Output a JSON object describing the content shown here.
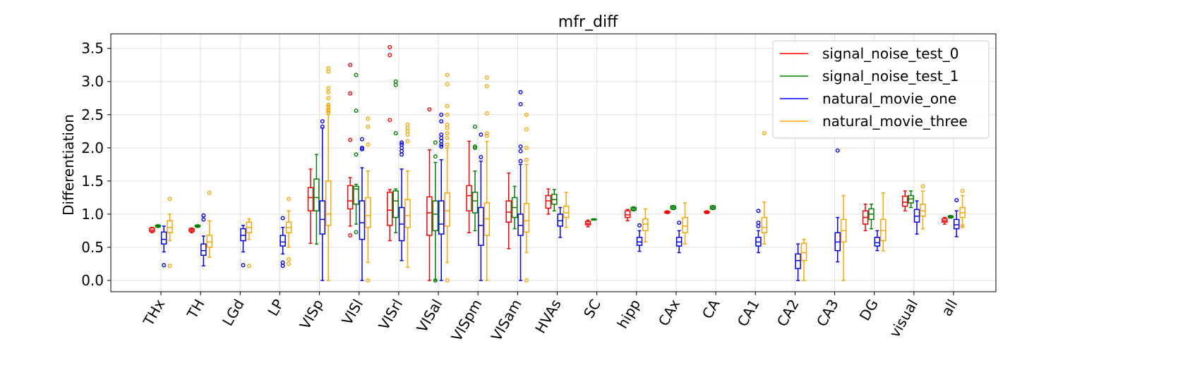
{
  "chart_data": {
    "type": "boxplot",
    "title": "mfr_diff",
    "xlabel": "",
    "ylabel": "Differentiation",
    "ylim": [
      -0.17,
      3.72
    ],
    "yticks": [
      0.0,
      0.5,
      1.0,
      1.5,
      2.0,
      2.5,
      3.0,
      3.5
    ],
    "ytick_labels": [
      "0.0",
      "0.5",
      "1.0",
      "1.5",
      "2.0",
      "2.5",
      "3.0",
      "3.5"
    ],
    "grid": true,
    "legend_position": "upper right",
    "categories": [
      "THx",
      "TH",
      "LGd",
      "LP",
      "VISp",
      "VISl",
      "VISrl",
      "VISal",
      "VISpm",
      "VISam",
      "HVAs",
      "SC",
      "hipp",
      "CAx",
      "CA",
      "CA1",
      "CA2",
      "CA3",
      "DG",
      "visual",
      "all"
    ],
    "series": [
      {
        "name": "signal_noise_test_0",
        "color": "#ff0000",
        "boxes": [
          {
            "cat": 0,
            "min": 0.72,
            "q1": 0.74,
            "med": 0.76,
            "q3": 0.79,
            "max": 0.8,
            "outliers": []
          },
          {
            "cat": 1,
            "min": 0.72,
            "q1": 0.74,
            "med": 0.76,
            "q3": 0.78,
            "max": 0.79,
            "outliers": []
          },
          {
            "cat": 4,
            "min": 0.56,
            "q1": 1.05,
            "med": 1.25,
            "q3": 1.4,
            "max": 1.68,
            "outliers": []
          },
          {
            "cat": 5,
            "min": 0.82,
            "q1": 1.08,
            "med": 1.2,
            "q3": 1.43,
            "max": 1.55,
            "outliers": [
              0.68,
              2.12,
              2.82,
              3.25
            ]
          },
          {
            "cat": 6,
            "min": 0.6,
            "q1": 0.83,
            "med": 1.06,
            "q3": 1.33,
            "max": 1.37,
            "outliers": [
              2.42,
              3.4,
              3.52
            ]
          },
          {
            "cat": 7,
            "min": 0.0,
            "q1": 0.68,
            "med": 1.02,
            "q3": 1.26,
            "max": 1.97,
            "outliers": [
              2.58
            ]
          },
          {
            "cat": 8,
            "min": 0.72,
            "q1": 1.05,
            "med": 1.28,
            "q3": 1.43,
            "max": 2.1,
            "outliers": []
          },
          {
            "cat": 9,
            "min": 0.48,
            "q1": 0.88,
            "med": 1.03,
            "q3": 1.2,
            "max": 1.62,
            "outliers": []
          },
          {
            "cat": 10,
            "min": 1.0,
            "q1": 1.09,
            "med": 1.2,
            "q3": 1.28,
            "max": 1.38,
            "outliers": []
          },
          {
            "cat": 11,
            "min": 0.81,
            "q1": 0.84,
            "med": 0.86,
            "q3": 0.89,
            "max": 0.91,
            "outliers": []
          },
          {
            "cat": 12,
            "min": 0.9,
            "q1": 0.95,
            "med": 0.99,
            "q3": 1.05,
            "max": 1.07,
            "outliers": []
          },
          {
            "cat": 13,
            "min": 1.01,
            "q1": 1.02,
            "med": 1.03,
            "q3": 1.04,
            "max": 1.05,
            "outliers": []
          },
          {
            "cat": 14,
            "min": 1.01,
            "q1": 1.02,
            "med": 1.03,
            "q3": 1.04,
            "max": 1.05,
            "outliers": []
          },
          {
            "cat": 18,
            "min": 0.75,
            "q1": 0.85,
            "med": 0.95,
            "q3": 1.05,
            "max": 1.15,
            "outliers": []
          },
          {
            "cat": 19,
            "min": 1.05,
            "q1": 1.12,
            "med": 1.18,
            "q3": 1.27,
            "max": 1.35,
            "outliers": []
          },
          {
            "cat": 20,
            "min": 0.85,
            "q1": 0.88,
            "med": 0.9,
            "q3": 0.93,
            "max": 0.95,
            "outliers": []
          }
        ]
      },
      {
        "name": "signal_noise_test_1",
        "color": "#008000",
        "boxes": [
          {
            "cat": 0,
            "min": 0.8,
            "q1": 0.81,
            "med": 0.82,
            "q3": 0.83,
            "max": 0.84,
            "outliers": []
          },
          {
            "cat": 1,
            "min": 0.8,
            "q1": 0.81,
            "med": 0.82,
            "q3": 0.83,
            "max": 0.84,
            "outliers": []
          },
          {
            "cat": 4,
            "min": 0.55,
            "q1": 1.05,
            "med": 1.25,
            "q3": 1.53,
            "max": 1.9,
            "outliers": []
          },
          {
            "cat": 5,
            "min": 0.85,
            "q1": 1.15,
            "med": 1.38,
            "q3": 1.42,
            "max": 1.45,
            "outliers": [
              0.73,
              1.9,
              2.56,
              3.1
            ]
          },
          {
            "cat": 6,
            "min": 0.72,
            "q1": 0.95,
            "med": 1.2,
            "q3": 1.35,
            "max": 1.38,
            "outliers": [
              2.22,
              2.95,
              3.0
            ]
          },
          {
            "cat": 7,
            "min": 0.0,
            "q1": 0.75,
            "med": 1.0,
            "q3": 1.2,
            "max": 1.78,
            "outliers": [
              0.0,
              1.87,
              2.08
            ]
          },
          {
            "cat": 8,
            "min": 0.75,
            "q1": 1.02,
            "med": 1.2,
            "q3": 1.33,
            "max": 1.65,
            "outliers": [
              2.0,
              2.02,
              2.32
            ]
          },
          {
            "cat": 9,
            "min": 0.78,
            "q1": 0.95,
            "med": 1.1,
            "q3": 1.25,
            "max": 1.42,
            "outliers": []
          },
          {
            "cat": 10,
            "min": 1.05,
            "q1": 1.15,
            "med": 1.22,
            "q3": 1.3,
            "max": 1.37,
            "outliers": []
          },
          {
            "cat": 11,
            "min": 0.91,
            "q1": 0.915,
            "med": 0.92,
            "q3": 0.925,
            "max": 0.93,
            "outliers": []
          },
          {
            "cat": 12,
            "min": 1.05,
            "q1": 1.06,
            "med": 1.08,
            "q3": 1.1,
            "max": 1.11,
            "outliers": []
          },
          {
            "cat": 13,
            "min": 1.07,
            "q1": 1.08,
            "med": 1.1,
            "q3": 1.12,
            "max": 1.13,
            "outliers": []
          },
          {
            "cat": 14,
            "min": 1.07,
            "q1": 1.08,
            "med": 1.1,
            "q3": 1.12,
            "max": 1.13,
            "outliers": []
          },
          {
            "cat": 18,
            "min": 0.78,
            "q1": 0.92,
            "med": 1.0,
            "q3": 1.08,
            "max": 1.15,
            "outliers": []
          },
          {
            "cat": 19,
            "min": 1.1,
            "q1": 1.17,
            "med": 1.23,
            "q3": 1.28,
            "max": 1.35,
            "outliers": []
          },
          {
            "cat": 20,
            "min": 0.94,
            "q1": 0.95,
            "med": 0.96,
            "q3": 0.97,
            "max": 0.98,
            "outliers": []
          }
        ]
      },
      {
        "name": "natural_movie_one",
        "color": "#0000ff",
        "boxes": [
          {
            "cat": 0,
            "min": 0.43,
            "q1": 0.55,
            "med": 0.62,
            "q3": 0.73,
            "max": 0.82,
            "outliers": [
              0.23
            ]
          },
          {
            "cat": 1,
            "min": 0.22,
            "q1": 0.38,
            "med": 0.45,
            "q3": 0.55,
            "max": 0.67,
            "outliers": [
              0.92,
              0.98
            ]
          },
          {
            "cat": 2,
            "min": 0.43,
            "q1": 0.6,
            "med": 0.68,
            "q3": 0.78,
            "max": 0.83,
            "outliers": [
              0.23
            ]
          },
          {
            "cat": 3,
            "min": 0.4,
            "q1": 0.52,
            "med": 0.58,
            "q3": 0.68,
            "max": 0.8,
            "outliers": [
              0.22,
              0.27,
              0.94
            ]
          },
          {
            "cat": 4,
            "min": 0.0,
            "q1": 0.7,
            "med": 0.92,
            "q3": 1.2,
            "max": 2.3,
            "outliers": [
              2.32,
              2.4
            ]
          },
          {
            "cat": 5,
            "min": 0.0,
            "q1": 0.62,
            "med": 0.87,
            "q3": 1.2,
            "max": 1.7,
            "outliers": [
              1.98,
              2.0,
              2.13
            ]
          },
          {
            "cat": 6,
            "min": 0.3,
            "q1": 0.6,
            "med": 0.85,
            "q3": 1.1,
            "max": 1.68,
            "outliers": [
              1.9,
              1.95,
              2.0,
              2.05,
              2.08
            ]
          },
          {
            "cat": 7,
            "min": 0.0,
            "q1": 0.7,
            "med": 0.85,
            "q3": 1.2,
            "max": 1.82,
            "outliers": [
              2.02,
              2.05,
              2.1,
              2.15,
              2.2,
              2.4,
              2.5
            ]
          },
          {
            "cat": 8,
            "min": 0.0,
            "q1": 0.53,
            "med": 0.83,
            "q3": 1.1,
            "max": 1.8,
            "outliers": [
              1.86,
              2.2
            ]
          },
          {
            "cat": 9,
            "min": 0.0,
            "q1": 0.68,
            "med": 0.83,
            "q3": 1.0,
            "max": 1.75,
            "outliers": [
              1.8,
              1.95,
              2.02,
              2.66,
              2.84
            ]
          },
          {
            "cat": 10,
            "min": 0.65,
            "q1": 0.82,
            "med": 0.9,
            "q3": 1.0,
            "max": 1.1,
            "outliers": []
          },
          {
            "cat": 12,
            "min": 0.44,
            "q1": 0.53,
            "med": 0.58,
            "q3": 0.65,
            "max": 0.75,
            "outliers": [
              0.83
            ]
          },
          {
            "cat": 13,
            "min": 0.42,
            "q1": 0.52,
            "med": 0.58,
            "q3": 0.65,
            "max": 0.75,
            "outliers": [
              0.87
            ]
          },
          {
            "cat": 15,
            "min": 0.42,
            "q1": 0.52,
            "med": 0.58,
            "q3": 0.65,
            "max": 0.75,
            "outliers": [
              0.82,
              0.87,
              1.05
            ]
          },
          {
            "cat": 16,
            "min": 0.0,
            "q1": 0.18,
            "med": 0.3,
            "q3": 0.4,
            "max": 0.55,
            "outliers": []
          },
          {
            "cat": 17,
            "min": 0.28,
            "q1": 0.45,
            "med": 0.58,
            "q3": 0.72,
            "max": 0.95,
            "outliers": [
              1.96
            ]
          },
          {
            "cat": 18,
            "min": 0.45,
            "q1": 0.52,
            "med": 0.57,
            "q3": 0.65,
            "max": 0.75,
            "outliers": []
          },
          {
            "cat": 19,
            "min": 0.7,
            "q1": 0.88,
            "med": 0.97,
            "q3": 1.07,
            "max": 1.2,
            "outliers": []
          },
          {
            "cat": 20,
            "min": 0.66,
            "q1": 0.78,
            "med": 0.84,
            "q3": 0.92,
            "max": 1.05,
            "outliers": [
              1.21
            ]
          }
        ]
      },
      {
        "name": "natural_movie_three",
        "color": "#ffa500",
        "boxes": [
          {
            "cat": 0,
            "min": 0.6,
            "q1": 0.72,
            "med": 0.8,
            "q3": 0.9,
            "max": 1.0,
            "outliers": [
              0.22,
              1.23
            ]
          },
          {
            "cat": 1,
            "min": 0.35,
            "q1": 0.5,
            "med": 0.58,
            "q3": 0.68,
            "max": 0.9,
            "outliers": [
              1.32
            ]
          },
          {
            "cat": 2,
            "min": 0.62,
            "q1": 0.72,
            "med": 0.8,
            "q3": 0.88,
            "max": 0.93,
            "outliers": [
              0.22
            ]
          },
          {
            "cat": 3,
            "min": 0.5,
            "q1": 0.72,
            "med": 0.8,
            "q3": 0.88,
            "max": 1.05,
            "outliers": [
              0.25,
              0.32,
              1.23
            ]
          },
          {
            "cat": 4,
            "min": 0.0,
            "q1": 0.83,
            "med": 1.0,
            "q3": 1.5,
            "max": 2.5,
            "outliers": [
              2.53,
              2.56,
              2.58,
              2.62,
              2.65,
              2.75,
              2.84,
              2.9,
              3.15,
              3.2
            ]
          },
          {
            "cat": 5,
            "min": 0.27,
            "q1": 0.8,
            "med": 0.98,
            "q3": 1.25,
            "max": 1.65,
            "outliers": [
              0.0,
              2.05,
              2.32,
              2.44
            ]
          },
          {
            "cat": 6,
            "min": 0.2,
            "q1": 0.8,
            "med": 0.98,
            "q3": 1.22,
            "max": 1.65,
            "outliers": [
              2.1,
              2.2,
              2.25,
              2.3,
              2.35
            ]
          },
          {
            "cat": 7,
            "min": 0.27,
            "q1": 0.82,
            "med": 1.05,
            "q3": 1.32,
            "max": 2.0,
            "outliers": [
              0.0,
              2.05,
              2.15,
              2.22,
              2.3,
              2.35,
              2.5,
              2.63,
              2.96,
              3.1
            ]
          },
          {
            "cat": 8,
            "min": 0.0,
            "q1": 0.68,
            "med": 0.93,
            "q3": 1.17,
            "max": 2.1,
            "outliers": [
              2.18,
              2.22,
              2.52,
              2.93,
              3.06
            ]
          },
          {
            "cat": 9,
            "min": 0.42,
            "q1": 0.73,
            "med": 0.9,
            "q3": 1.16,
            "max": 1.75,
            "outliers": [
              0.0,
              1.82,
              2.0,
              2.28,
              2.5
            ]
          },
          {
            "cat": 10,
            "min": 0.8,
            "q1": 0.95,
            "med": 1.02,
            "q3": 1.12,
            "max": 1.33,
            "outliers": []
          },
          {
            "cat": 12,
            "min": 0.58,
            "q1": 0.75,
            "med": 0.85,
            "q3": 0.93,
            "max": 1.08,
            "outliers": []
          },
          {
            "cat": 13,
            "min": 0.55,
            "q1": 0.72,
            "med": 0.82,
            "q3": 0.95,
            "max": 1.17,
            "outliers": []
          },
          {
            "cat": 15,
            "min": 0.55,
            "q1": 0.72,
            "med": 0.8,
            "q3": 0.95,
            "max": 1.18,
            "outliers": [
              2.22
            ]
          },
          {
            "cat": 16,
            "min": 0.0,
            "q1": 0.3,
            "med": 0.42,
            "q3": 0.56,
            "max": 0.62,
            "outliers": []
          },
          {
            "cat": 17,
            "min": 0.0,
            "q1": 0.58,
            "med": 0.75,
            "q3": 0.92,
            "max": 1.28,
            "outliers": []
          },
          {
            "cat": 18,
            "min": 0.45,
            "q1": 0.6,
            "med": 0.75,
            "q3": 0.92,
            "max": 1.32,
            "outliers": []
          },
          {
            "cat": 19,
            "min": 0.78,
            "q1": 0.97,
            "med": 1.05,
            "q3": 1.15,
            "max": 1.35,
            "outliers": [
              1.42
            ]
          },
          {
            "cat": 20,
            "min": 0.8,
            "q1": 0.95,
            "med": 1.02,
            "q3": 1.1,
            "max": 1.28,
            "outliers": [
              0.82,
              1.35
            ]
          }
        ]
      }
    ]
  }
}
